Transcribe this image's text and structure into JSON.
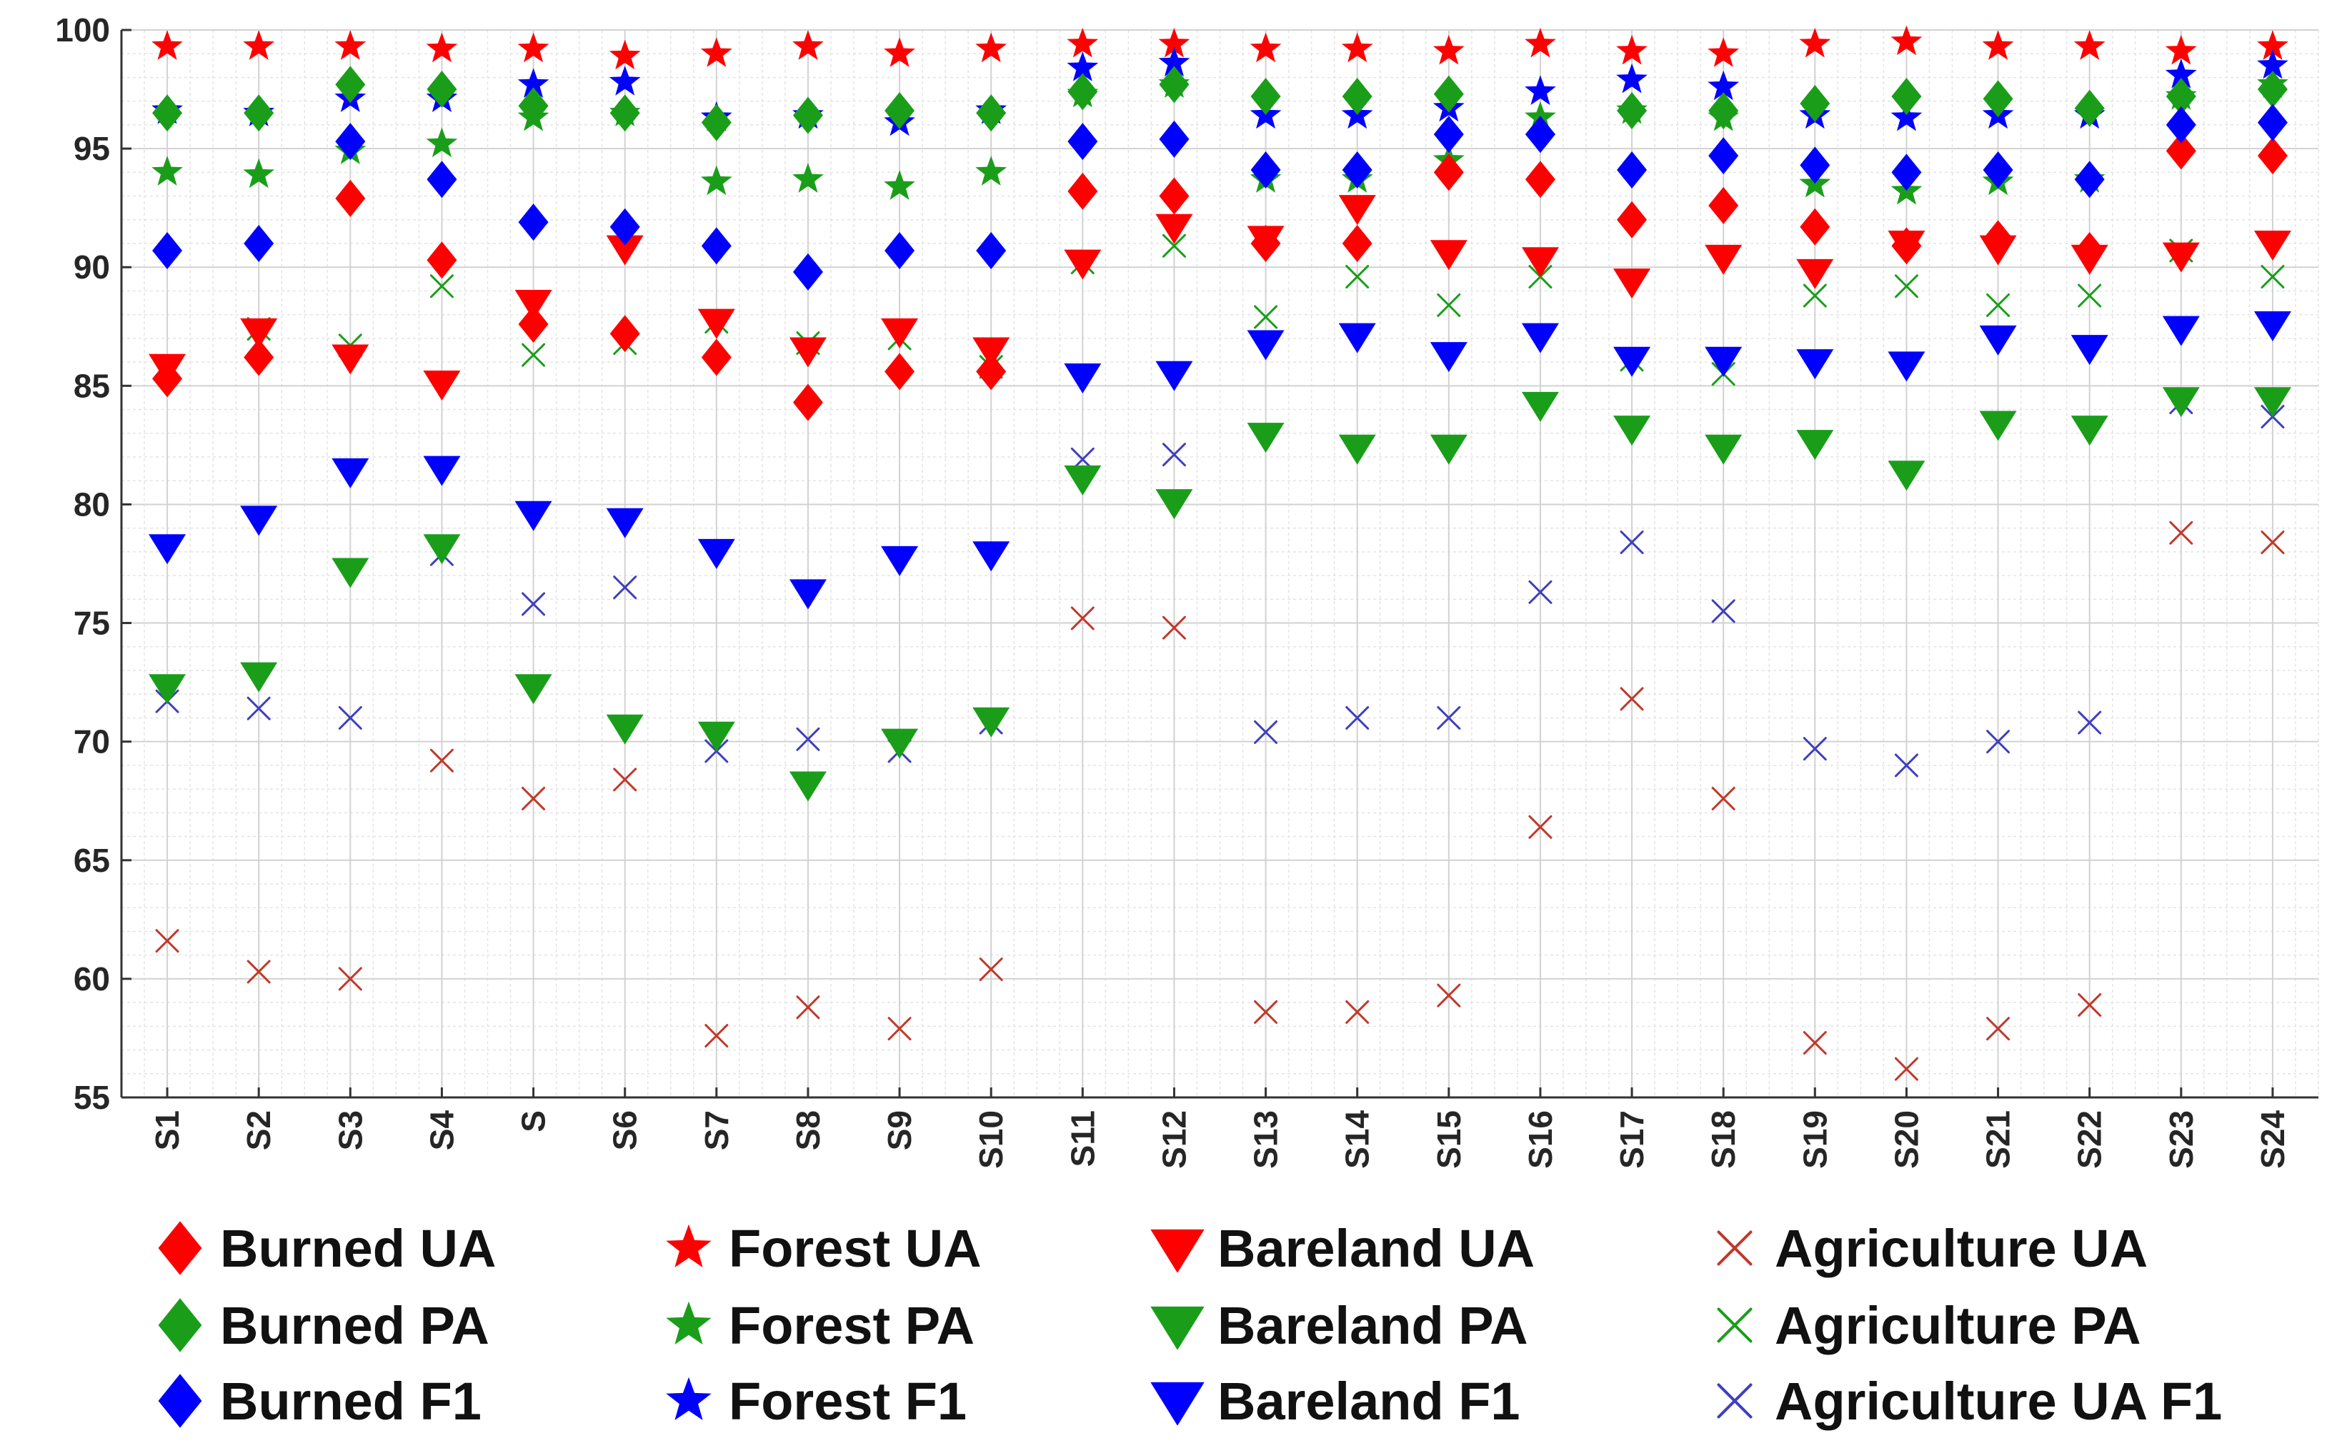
{
  "chart_data": {
    "type": "scatter",
    "title": "",
    "xlabel": "",
    "ylabel": "",
    "ylim": [
      55,
      100
    ],
    "yticks": [
      55,
      60,
      65,
      70,
      75,
      80,
      85,
      90,
      95,
      100
    ],
    "grid": "minor",
    "categories": [
      "S1",
      "S2",
      "S3",
      "S4",
      "S",
      "S6",
      "S7",
      "S8",
      "S9",
      "S10",
      "S11",
      "S12",
      "S13",
      "S14",
      "S15",
      "S16",
      "S17",
      "S18",
      "S19",
      "S20",
      "S21",
      "S22",
      "S23",
      "S24"
    ],
    "legend_position": "bottom",
    "series": [
      {
        "name": "Burned UA",
        "marker": "diamond",
        "color": "#ff0000",
        "values": [
          85.3,
          86.2,
          92.9,
          90.3,
          87.6,
          87.2,
          86.2,
          84.3,
          85.6,
          85.6,
          93.2,
          93.0,
          91.0,
          91.0,
          94.0,
          93.7,
          92.0,
          92.6,
          91.7,
          90.9,
          91.2,
          90.7,
          94.9,
          94.7
        ]
      },
      {
        "name": "Burned PA",
        "marker": "diamond",
        "color": "#1a9e1a",
        "values": [
          96.5,
          96.5,
          97.7,
          97.5,
          96.8,
          96.5,
          96.1,
          96.4,
          96.6,
          96.5,
          97.4,
          97.7,
          97.2,
          97.2,
          97.3,
          95.6,
          96.6,
          96.6,
          96.9,
          97.2,
          97.1,
          96.7,
          97.2,
          97.5
        ]
      },
      {
        "name": "Burned F1",
        "marker": "diamond",
        "color": "#0000ff",
        "values": [
          90.7,
          91.0,
          95.3,
          93.7,
          91.9,
          91.7,
          90.9,
          89.8,
          90.7,
          90.7,
          95.3,
          95.4,
          94.1,
          94.1,
          95.6,
          95.6,
          94.1,
          94.7,
          94.3,
          94.0,
          94.1,
          93.7,
          96.0,
          96.1
        ]
      },
      {
        "name": "Forest UA",
        "marker": "star",
        "color": "#ff0000",
        "values": [
          99.3,
          99.3,
          99.3,
          99.2,
          99.2,
          98.9,
          99.0,
          99.3,
          99.0,
          99.2,
          99.4,
          99.4,
          99.2,
          99.2,
          99.1,
          99.4,
          99.1,
          99.0,
          99.4,
          99.5,
          99.3,
          99.3,
          99.1,
          99.3
        ]
      },
      {
        "name": "Forest PA",
        "marker": "star",
        "color": "#1a9e1a",
        "values": [
          94.0,
          93.9,
          94.9,
          95.2,
          96.3,
          96.5,
          93.6,
          93.7,
          93.4,
          94.0,
          97.3,
          97.7,
          93.7,
          93.7,
          94.5,
          96.3,
          96.6,
          96.3,
          93.5,
          93.2,
          93.6,
          93.7,
          97.2,
          97.7
        ]
      },
      {
        "name": "Forest F1",
        "marker": "star",
        "color": "#0000ff",
        "values": [
          96.6,
          96.5,
          97.1,
          97.1,
          97.7,
          97.8,
          96.3,
          96.4,
          96.1,
          96.6,
          98.4,
          98.6,
          96.4,
          96.4,
          96.7,
          97.4,
          97.9,
          97.6,
          96.4,
          96.3,
          96.4,
          96.4,
          98.1,
          98.5
        ]
      },
      {
        "name": "Bareland UA",
        "marker": "triangle-down",
        "color": "#ff0000",
        "values": [
          85.8,
          87.3,
          86.2,
          85.1,
          88.5,
          90.8,
          87.7,
          86.5,
          87.3,
          86.5,
          90.2,
          91.7,
          91.2,
          92.5,
          90.6,
          90.3,
          89.4,
          90.4,
          89.8,
          91.0,
          90.8,
          90.4,
          90.5,
          91.0
        ]
      },
      {
        "name": "Bareland PA",
        "marker": "triangle-down",
        "color": "#1a9e1a",
        "values": [
          72.3,
          72.8,
          77.2,
          78.2,
          72.3,
          70.6,
          70.3,
          68.2,
          70.0,
          70.9,
          81.1,
          80.1,
          82.9,
          82.4,
          82.4,
          84.2,
          83.2,
          82.4,
          82.6,
          81.3,
          83.4,
          83.2,
          84.4,
          84.4
        ]
      },
      {
        "name": "Bareland F1",
        "marker": "triangle-down",
        "color": "#0000ff",
        "values": [
          78.2,
          79.4,
          81.4,
          81.5,
          79.6,
          79.3,
          78.0,
          76.3,
          77.7,
          77.9,
          85.4,
          85.5,
          86.8,
          87.1,
          86.3,
          87.1,
          86.1,
          86.1,
          86.0,
          85.9,
          87.0,
          86.6,
          87.4,
          87.6
        ]
      },
      {
        "name": "Agriculture UA",
        "marker": "x",
        "color": "#c0392b",
        "values": [
          61.6,
          60.3,
          60.0,
          69.2,
          67.6,
          68.4,
          57.6,
          58.8,
          57.9,
          60.4,
          75.2,
          74.8,
          58.6,
          58.6,
          59.3,
          66.4,
          71.8,
          67.6,
          57.3,
          56.2,
          57.9,
          58.9,
          78.8,
          78.4
        ]
      },
      {
        "name": "Agriculture PA",
        "marker": "x",
        "color": "#1a9e1a",
        "values": [
          85.8,
          87.4,
          86.7,
          89.2,
          86.3,
          86.8,
          87.7,
          86.8,
          87.0,
          85.8,
          90.2,
          90.9,
          87.9,
          89.6,
          88.4,
          89.6,
          86.1,
          85.5,
          88.8,
          89.2,
          88.4,
          88.8,
          90.7,
          89.6
        ]
      },
      {
        "name": "Agriculture UA F1",
        "marker": "x",
        "color": "#3f3fbf",
        "values": [
          71.7,
          71.4,
          71.0,
          77.9,
          75.8,
          76.5,
          69.6,
          70.1,
          69.6,
          70.8,
          81.9,
          82.1,
          70.4,
          71.0,
          71.0,
          76.3,
          78.4,
          75.5,
          69.7,
          69.0,
          70.0,
          70.8,
          84.3,
          83.7
        ]
      }
    ],
    "legend": [
      [
        "Burned UA",
        "Forest UA",
        "Bareland UA",
        "Agriculture UA"
      ],
      [
        "Burned PA",
        "Forest PA",
        "Bareland PA",
        "Agriculture PA"
      ],
      [
        "Burned F1",
        "Forest F1",
        "Bareland F1",
        "Agriculture UA F1"
      ]
    ]
  }
}
